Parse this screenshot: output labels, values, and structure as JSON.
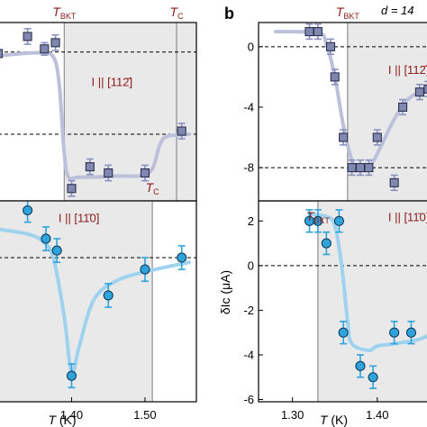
{
  "colors": {
    "shade": "#e9e9e9",
    "series_square_fill": "#8188b0",
    "series_square_stroke": "#2c3050",
    "series_square_curve": "#bcc0da",
    "series_square_err": "#8a92c2",
    "series_circle_fill": "#2fa3dc",
    "series_circle_stroke": "#123f5e",
    "series_circle_curve": "#9ed2ee",
    "series_circle_err": "#2fa3dc",
    "annotation": "#8b1a1a",
    "vline": "#909090"
  },
  "chart_data": [
    {
      "id": "a-top",
      "type": "scatter",
      "xlim": [
        1.3,
        1.57
      ],
      "ylim": [
        -9.6,
        1.9
      ],
      "shade_from_x": 1.39,
      "dashed_y": [
        0,
        -5.3
      ],
      "markers": "square",
      "show_curve": true,
      "annotations": [
        {
          "text": "T",
          "sub": "BKT",
          "x": 1.39,
          "anchor": "top",
          "style": "italic-sub"
        },
        {
          "text": "T",
          "sub": "C",
          "x": 1.543,
          "anchor": "top",
          "style": "italic-sub"
        },
        {
          "text": "T",
          "sub": "C",
          "x": 1.51,
          "anchor": "inner-bottom",
          "style": "italic-sub"
        },
        {
          "text": "I || [112̄]",
          "anchor": "inner-label",
          "x": 1.455,
          "y": -2.2
        }
      ],
      "points": [
        {
          "x": 1.3,
          "y": -0.1,
          "err": 0.2
        },
        {
          "x": 1.34,
          "y": 1.0,
          "err": 0.5
        },
        {
          "x": 1.363,
          "y": 0.2,
          "err": 0.4
        },
        {
          "x": 1.378,
          "y": 0.6,
          "err": 0.5
        },
        {
          "x": 1.4,
          "y": -8.8,
          "err": 0.5
        },
        {
          "x": 1.425,
          "y": -7.4,
          "err": 0.5
        },
        {
          "x": 1.45,
          "y": -7.8,
          "err": 0.5
        },
        {
          "x": 1.5,
          "y": -7.8,
          "err": 0.5
        },
        {
          "x": 1.55,
          "y": -5.1,
          "err": 0.5
        }
      ],
      "curve": [
        [
          1.3,
          -0.25
        ],
        [
          1.35,
          -0.05
        ],
        [
          1.374,
          -0.25
        ],
        [
          1.383,
          -2.0
        ],
        [
          1.389,
          -6.0
        ],
        [
          1.395,
          -8.0
        ],
        [
          1.41,
          -8.08
        ],
        [
          1.46,
          -8.0
        ],
        [
          1.505,
          -7.8
        ],
        [
          1.52,
          -6.0
        ],
        [
          1.53,
          -5.45
        ],
        [
          1.56,
          -5.3
        ]
      ]
    },
    {
      "id": "a-bottom",
      "type": "scatter",
      "xlim": [
        1.3,
        1.57
      ],
      "ylim": [
        -6.1,
        2.4
      ],
      "shade_to_x": 1.51,
      "dashed_y": [
        0
      ],
      "markers": "circle",
      "show_curve": true,
      "xticks": [
        1.4,
        1.5
      ],
      "xlabel": "T (K)",
      "annotations": [
        {
          "text": "I || [11̄0]",
          "anchor": "inner-label",
          "x": 1.41,
          "y": 1.5
        }
      ],
      "points": [
        {
          "x": 1.34,
          "y": 2.0,
          "err": 0.5
        },
        {
          "x": 1.365,
          "y": 0.8,
          "err": 0.5
        },
        {
          "x": 1.38,
          "y": 0.3,
          "err": 0.5
        },
        {
          "x": 1.4,
          "y": -5.0,
          "err": 0.5
        },
        {
          "x": 1.45,
          "y": -1.6,
          "err": 0.5
        },
        {
          "x": 1.5,
          "y": -0.5,
          "err": 0.5
        },
        {
          "x": 1.55,
          "y": 0.0,
          "err": 0.5
        }
      ],
      "curve": [
        [
          1.3,
          1.2
        ],
        [
          1.34,
          1.0
        ],
        [
          1.36,
          0.7
        ],
        [
          1.375,
          0.0
        ],
        [
          1.39,
          -2.5
        ],
        [
          1.4,
          -4.9
        ],
        [
          1.41,
          -3.8
        ],
        [
          1.43,
          -1.8
        ],
        [
          1.46,
          -1.0
        ],
        [
          1.5,
          -0.6
        ],
        [
          1.56,
          -0.2
        ]
      ]
    },
    {
      "id": "b-top",
      "type": "scatter",
      "xlim": [
        1.26,
        1.465
      ],
      "ylim": [
        -10.2,
        1.6
      ],
      "shade_from_x": 1.365,
      "dashed_y": [
        0,
        -8
      ],
      "markers": "square",
      "show_curve": true,
      "yticks": [
        0,
        -4,
        -8
      ],
      "annotations": [
        {
          "text": "T",
          "sub": "BKT",
          "x": 1.365,
          "anchor": "top",
          "style": "italic-sub"
        },
        {
          "text": "I || [112̄]",
          "anchor": "inner-label",
          "x": 1.437,
          "y": -1.8
        }
      ],
      "points": [
        {
          "x": 1.32,
          "y": 1.0,
          "err": 0.5
        },
        {
          "x": 1.33,
          "y": 1.0,
          "err": 0.5
        },
        {
          "x": 1.345,
          "y": 0.0,
          "err": 0.5
        },
        {
          "x": 1.35,
          "y": -2.0,
          "err": 0.5
        },
        {
          "x": 1.36,
          "y": -6.0,
          "err": 0.5
        },
        {
          "x": 1.37,
          "y": -8.0,
          "err": 0.5
        },
        {
          "x": 1.38,
          "y": -8.0,
          "err": 0.5
        },
        {
          "x": 1.39,
          "y": -8.0,
          "err": 0.5
        },
        {
          "x": 1.4,
          "y": -6.0,
          "err": 0.5
        },
        {
          "x": 1.42,
          "y": -9.0,
          "err": 0.5
        },
        {
          "x": 1.43,
          "y": -4.0,
          "err": 0.5
        },
        {
          "x": 1.45,
          "y": -3.0,
          "err": 0.5
        },
        {
          "x": 1.46,
          "y": -2.8,
          "err": 0.5
        }
      ],
      "curve": [
        [
          1.28,
          1.0
        ],
        [
          1.33,
          0.9
        ],
        [
          1.34,
          0.2
        ],
        [
          1.35,
          -2.0
        ],
        [
          1.36,
          -5.2
        ],
        [
          1.37,
          -7.5
        ],
        [
          1.38,
          -8.2
        ],
        [
          1.395,
          -7.6
        ],
        [
          1.42,
          -4.8
        ],
        [
          1.44,
          -3.3
        ],
        [
          1.465,
          -2.9
        ]
      ]
    },
    {
      "id": "b-bottom",
      "type": "scatter",
      "xlim": [
        1.26,
        1.465
      ],
      "ylim": [
        -6.1,
        2.9
      ],
      "shade_from_x": 1.33,
      "dashed_y": [
        0
      ],
      "markers": "circle",
      "show_curve": true,
      "yticks": [
        2,
        0,
        -2,
        -4,
        -6
      ],
      "xticks": [
        1.3,
        1.4
      ],
      "xlabel": "T (K)",
      "ylabel": "δIc (μA)",
      "annotations": [
        {
          "text": "T",
          "sub": "BKT",
          "x": 1.33,
          "anchor": "inner-top",
          "style": "italic-sub"
        },
        {
          "text": "I || [11̄0]",
          "anchor": "inner-label",
          "x": 1.437,
          "y": 2.0
        }
      ],
      "points": [
        {
          "x": 1.32,
          "y": 2.0,
          "err": 0.5
        },
        {
          "x": 1.33,
          "y": 2.0,
          "err": 0.5
        },
        {
          "x": 1.34,
          "y": 1.0,
          "err": 0.5
        },
        {
          "x": 1.355,
          "y": 2.0,
          "err": 0.5
        },
        {
          "x": 1.36,
          "y": -3.0,
          "err": 0.5
        },
        {
          "x": 1.38,
          "y": -4.5,
          "err": 0.5
        },
        {
          "x": 1.395,
          "y": -5.0,
          "err": 0.5
        },
        {
          "x": 1.42,
          "y": -3.0,
          "err": 0.5
        },
        {
          "x": 1.44,
          "y": -3.0,
          "err": 0.5
        }
      ],
      "curve": [
        [
          1.32,
          2.3
        ],
        [
          1.34,
          2.2
        ],
        [
          1.35,
          1.8
        ],
        [
          1.358,
          0.0
        ],
        [
          1.365,
          -2.5
        ],
        [
          1.37,
          -3.5
        ],
        [
          1.39,
          -3.8
        ],
        [
          1.4,
          -3.6
        ],
        [
          1.42,
          -3.5
        ],
        [
          1.45,
          -3.3
        ],
        [
          1.465,
          -3.0
        ]
      ]
    }
  ],
  "labels": {
    "panel_b": "b",
    "d_label": "d = 14"
  }
}
